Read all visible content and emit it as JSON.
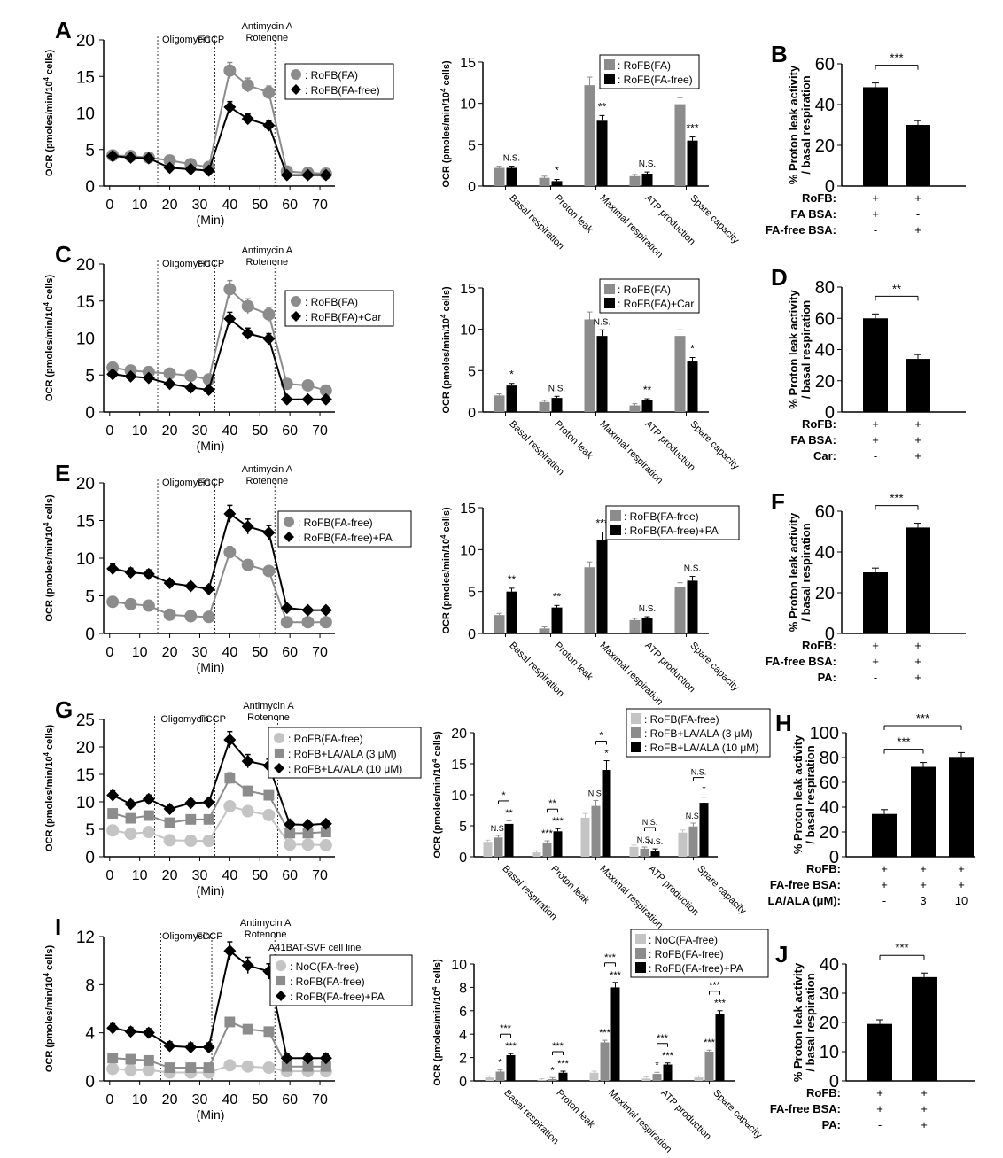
{
  "figure": {
    "panel_letters": [
      "A",
      "B",
      "C",
      "D",
      "E",
      "F",
      "G",
      "H",
      "I",
      "J"
    ],
    "time_xlabel": "(Min)",
    "ocr_ylabel": "OCR (pmoles/min/10",
    "ocr_ylabel_sup": "4",
    "ocr_ylabel_end": " cells)",
    "ratio_ylabel_1": "% Proton leak activity",
    "ratio_ylabel_2": "/ basal respiration",
    "injections": [
      "Oligomycin",
      "FCCP",
      "Antimycin A",
      "Rotenone"
    ],
    "sig": {
      "ns": "N.S.",
      "one": "*",
      "two": "**",
      "three": "***"
    },
    "yes": "+",
    "no": "-",
    "cell_line_label": "A41BAT-SVF cell line"
  },
  "colors": {
    "black": "#000000",
    "gray": "#8c8c8c",
    "lightgray": "#c4c4c4",
    "darkgray": "#555555"
  },
  "chart_data": [
    {
      "panel": "A",
      "type": "line",
      "xlabel": "(Min)",
      "ylabel": "OCR (pmoles/min/10^4 cells)",
      "ylim": [
        0,
        20
      ],
      "yticks": [
        0,
        5,
        10,
        15,
        20
      ],
      "xticks": [
        0,
        10,
        20,
        30,
        40,
        50,
        60,
        70
      ],
      "injection_times": [
        16,
        35,
        55
      ],
      "x": [
        1,
        7,
        13,
        20,
        27,
        33,
        40,
        46,
        53,
        59,
        66,
        72
      ],
      "series": [
        {
          "name": ": RoFB(FA)",
          "color": "gray",
          "marker": "circle",
          "values": [
            4.2,
            4.1,
            3.9,
            3.5,
            3.0,
            2.6,
            15.8,
            13.8,
            12.8,
            2.0,
            1.8,
            1.7
          ]
        },
        {
          "name": ": RoFB(FA-free)",
          "color": "black",
          "marker": "diamond",
          "values": [
            4.1,
            3.9,
            3.8,
            2.5,
            2.3,
            2.1,
            10.8,
            9.2,
            8.3,
            1.5,
            1.5,
            1.5
          ]
        }
      ]
    },
    {
      "panel": "A",
      "type": "bar",
      "ylabel": "OCR (pmoles/min/10^4 cells)",
      "ylim": [
        0,
        15
      ],
      "yticks": [
        0,
        5,
        10,
        15
      ],
      "categories": [
        "Basal respiration",
        "Proton leak",
        "Maximal respiration",
        "ATP production",
        "Spare capacity"
      ],
      "series": [
        {
          "name": ": RoFB(FA)",
          "color": "gray",
          "values": [
            2.2,
            1.0,
            12.2,
            1.2,
            9.9
          ]
        },
        {
          "name": ": RoFB(FA-free)",
          "color": "black",
          "values": [
            2.2,
            0.6,
            7.9,
            1.5,
            5.5
          ]
        }
      ],
      "significance": [
        "N.S.",
        "*",
        "**",
        "N.S.",
        "***"
      ]
    },
    {
      "panel": "B",
      "type": "bar",
      "ylabel": "% Proton leak activity / basal respiration",
      "ylim": [
        0,
        60
      ],
      "yticks": [
        0,
        20,
        40,
        60
      ],
      "values": [
        48.5,
        30.0
      ],
      "bracket": "***",
      "conditions": [
        {
          "label": "RoFB:",
          "marks": [
            "+",
            "+"
          ]
        },
        {
          "label": "FA BSA:",
          "marks": [
            "+",
            "-"
          ]
        },
        {
          "label": "FA-free BSA:",
          "marks": [
            "-",
            "+"
          ]
        }
      ]
    },
    {
      "panel": "C",
      "type": "line",
      "xlabel": "(Min)",
      "ylabel": "OCR (pmoles/min/10^4 cells)",
      "ylim": [
        0,
        20
      ],
      "yticks": [
        0,
        5,
        10,
        15,
        20
      ],
      "xticks": [
        0,
        10,
        20,
        30,
        40,
        50,
        60,
        70
      ],
      "injection_times": [
        16,
        35,
        55
      ],
      "x": [
        1,
        7,
        13,
        20,
        27,
        33,
        40,
        46,
        53,
        59,
        66,
        72
      ],
      "series": [
        {
          "name": ": RoFB(FA)",
          "color": "gray",
          "marker": "circle",
          "values": [
            6.0,
            5.6,
            5.4,
            5.2,
            4.9,
            4.4,
            16.6,
            14.3,
            13.2,
            3.8,
            3.6,
            2.9
          ]
        },
        {
          "name": ": RoFB(FA)+Car",
          "color": "black",
          "marker": "diamond",
          "values": [
            5.1,
            4.8,
            4.6,
            3.8,
            3.3,
            3.0,
            12.6,
            10.6,
            9.9,
            1.7,
            1.7,
            1.7
          ]
        }
      ]
    },
    {
      "panel": "C",
      "type": "bar",
      "ylabel": "OCR (pmoles/min/10^4 cells)",
      "ylim": [
        0,
        15
      ],
      "yticks": [
        0,
        5,
        10,
        15
      ],
      "categories": [
        "Basal respiration",
        "Proton leak",
        "Maximal respiration",
        "ATP production",
        "Spare capacity"
      ],
      "series": [
        {
          "name": ": RoFB(FA)",
          "color": "gray",
          "values": [
            2.0,
            1.2,
            11.2,
            0.8,
            9.2
          ]
        },
        {
          "name": ": RoFB(FA)+Car",
          "color": "black",
          "values": [
            3.2,
            1.7,
            9.2,
            1.4,
            6.1
          ]
        }
      ],
      "significance": [
        "*",
        "N.S.",
        "N.S.",
        "**",
        "*"
      ]
    },
    {
      "panel": "D",
      "type": "bar",
      "ylabel": "% Proton leak activity / basal respiration",
      "ylim": [
        0,
        80
      ],
      "yticks": [
        0,
        20,
        40,
        60,
        80
      ],
      "values": [
        60.0,
        34.0
      ],
      "bracket": "**",
      "conditions": [
        {
          "label": "RoFB:",
          "marks": [
            "+",
            "+"
          ]
        },
        {
          "label": "FA BSA:",
          "marks": [
            "+",
            "+"
          ]
        },
        {
          "label": "Car:",
          "marks": [
            "-",
            "+"
          ]
        }
      ]
    },
    {
      "panel": "E",
      "type": "line",
      "xlabel": "(Min)",
      "ylabel": "OCR (pmoles/min/10^4 cells)",
      "ylim": [
        0,
        20
      ],
      "yticks": [
        0,
        5,
        10,
        15,
        20
      ],
      "xticks": [
        0,
        10,
        20,
        30,
        40,
        50,
        60,
        70
      ],
      "injection_times": [
        16,
        35,
        55
      ],
      "x": [
        1,
        7,
        13,
        20,
        27,
        33,
        40,
        46,
        53,
        59,
        66,
        72
      ],
      "series": [
        {
          "name": ": RoFB(FA-free)",
          "color": "gray",
          "marker": "circle",
          "values": [
            4.2,
            3.9,
            3.7,
            2.5,
            2.3,
            2.2,
            10.8,
            9.1,
            8.3,
            1.5,
            1.5,
            1.5
          ]
        },
        {
          "name": ": RoFB(FA-free)+PA",
          "color": "black",
          "marker": "diamond",
          "values": [
            8.6,
            8.1,
            7.9,
            6.7,
            6.3,
            5.9,
            15.9,
            14.2,
            13.4,
            3.4,
            3.1,
            3.1
          ]
        }
      ]
    },
    {
      "panel": "E",
      "type": "bar",
      "ylabel": "OCR (pmoles/min/10^4 cells)",
      "ylim": [
        0,
        15
      ],
      "yticks": [
        0,
        5,
        10,
        15
      ],
      "categories": [
        "Basal respiration",
        "Proton leak",
        "Maximal respiration",
        "ATP production",
        "Spare capacity"
      ],
      "series": [
        {
          "name": ": RoFB(FA-free)",
          "color": "gray",
          "values": [
            2.2,
            0.6,
            7.9,
            1.6,
            5.6
          ]
        },
        {
          "name": ": RoFB(FA-free)+PA",
          "color": "black",
          "values": [
            5.0,
            3.1,
            11.2,
            1.8,
            6.3
          ]
        }
      ],
      "significance": [
        "**",
        "**",
        "***",
        "N.S.",
        "N.S."
      ]
    },
    {
      "panel": "F",
      "type": "bar",
      "ylabel": "% Proton leak activity / basal respiration",
      "ylim": [
        0,
        60
      ],
      "yticks": [
        0,
        20,
        40,
        60
      ],
      "values": [
        30.0,
        52.0
      ],
      "bracket": "***",
      "conditions": [
        {
          "label": "RoFB:",
          "marks": [
            "+",
            "+"
          ]
        },
        {
          "label": "FA-free BSA:",
          "marks": [
            "+",
            "+"
          ]
        },
        {
          "label": "PA:",
          "marks": [
            "-",
            "+"
          ]
        }
      ]
    },
    {
      "panel": "G",
      "type": "line",
      "xlabel": "(Min)",
      "ylabel": "OCR (pmoles/min/10^4 cells)",
      "ylim": [
        0,
        25
      ],
      "yticks": [
        0,
        5,
        10,
        15,
        20,
        25
      ],
      "xticks": [
        0,
        10,
        20,
        30,
        40,
        50,
        60,
        70
      ],
      "injection_times": [
        15,
        35,
        56
      ],
      "x": [
        1,
        7,
        13,
        20,
        27,
        33,
        40,
        46,
        53,
        60,
        66,
        72
      ],
      "series": [
        {
          "name": ": RoFB(FA-free)",
          "color": "lightgray",
          "marker": "circle",
          "values": [
            4.8,
            4.2,
            4.5,
            3.0,
            2.9,
            2.9,
            9.2,
            8.3,
            7.6,
            2.2,
            2.2,
            2.1
          ]
        },
        {
          "name": ": RoFB+LA/ALA (3 μM)",
          "color": "gray",
          "marker": "square",
          "values": [
            7.9,
            7.0,
            7.5,
            6.2,
            6.8,
            6.8,
            14.3,
            12.0,
            11.2,
            4.3,
            4.3,
            4.5
          ]
        },
        {
          "name": ": RoFB+LA/ALA (10 μM)",
          "color": "black",
          "marker": "diamond",
          "values": [
            11.2,
            9.6,
            10.5,
            8.7,
            9.8,
            9.9,
            21.3,
            17.4,
            16.6,
            5.9,
            5.8,
            6.0
          ]
        }
      ]
    },
    {
      "panel": "G",
      "type": "bar",
      "ylabel": "OCR (pmoles/min/10^4 cells)",
      "ylim": [
        0,
        20
      ],
      "yticks": [
        0,
        5,
        10,
        15,
        20
      ],
      "categories": [
        "Basal respiration",
        "Proton leak",
        "Maximal respiration",
        "ATP production",
        "Spare capacity"
      ],
      "series": [
        {
          "name": ": RoFB(FA-free)",
          "color": "lightgray",
          "values": [
            2.4,
            0.7,
            6.3,
            1.6,
            3.9
          ]
        },
        {
          "name": ": RoFB+LA/ALA (3 μM)",
          "color": "gray",
          "values": [
            3.1,
            2.3,
            8.2,
            1.3,
            4.9
          ]
        },
        {
          "name": ": RoFB+LA/ALA (10 μM)",
          "color": "black",
          "values": [
            5.3,
            4.1,
            14.0,
            1.0,
            8.7
          ]
        }
      ],
      "significance_mid": [
        "N.S.",
        "***",
        "N.S.",
        "N.S.",
        "N.S."
      ],
      "significance_high": [
        "**",
        "***",
        "*",
        "N.S.",
        "*"
      ],
      "bracket_sig": [
        "*",
        "**",
        "*",
        "N.S.",
        "N.S."
      ]
    },
    {
      "panel": "H",
      "type": "bar",
      "ylabel": "% Proton leak activity / basal respiration",
      "ylim": [
        0,
        100
      ],
      "yticks": [
        0,
        20,
        40,
        60,
        80,
        100
      ],
      "values": [
        34.5,
        72.5,
        80.5
      ],
      "brackets": [
        "***",
        "***"
      ],
      "conditions": [
        {
          "label": "RoFB:",
          "marks": [
            "+",
            "+",
            "+"
          ]
        },
        {
          "label": "FA-free BSA:",
          "marks": [
            "+",
            "+",
            "+"
          ]
        },
        {
          "label": "LA/ALA (μM):",
          "marks": [
            "-",
            "3",
            "10"
          ]
        }
      ]
    },
    {
      "panel": "I",
      "type": "line",
      "xlabel": "(Min)",
      "ylabel": "OCR (pmoles/min/10^4 cells)",
      "ylim": [
        0,
        12
      ],
      "yticks": [
        0,
        4,
        8,
        12
      ],
      "xticks": [
        0,
        10,
        20,
        30,
        40,
        50,
        60,
        70
      ],
      "injection_times": [
        17,
        34,
        55
      ],
      "x": [
        1,
        7,
        13,
        20,
        27,
        33,
        40,
        46,
        53,
        59,
        66,
        72
      ],
      "series": [
        {
          "name": ": NoC(FA-free)",
          "color": "lightgray",
          "marker": "circle",
          "values": [
            1.0,
            0.9,
            0.9,
            0.7,
            0.7,
            0.7,
            1.3,
            1.2,
            1.1,
            0.8,
            0.8,
            0.8
          ]
        },
        {
          "name": ": RoFB(FA-free)",
          "color": "gray",
          "marker": "square",
          "values": [
            1.9,
            1.8,
            1.7,
            1.1,
            1.1,
            1.1,
            4.9,
            4.3,
            4.1,
            1.2,
            1.2,
            1.2
          ]
        },
        {
          "name": ": RoFB(FA-free)+PA",
          "color": "black",
          "marker": "diamond",
          "values": [
            4.4,
            4.1,
            4.0,
            2.9,
            2.8,
            2.8,
            10.8,
            9.6,
            9.1,
            1.9,
            1.9,
            1.9
          ]
        }
      ]
    },
    {
      "panel": "I",
      "type": "bar",
      "ylabel": "OCR (pmoles/min/10^4 cells)",
      "ylim": [
        0,
        10
      ],
      "yticks": [
        0,
        2,
        4,
        6,
        8,
        10
      ],
      "categories": [
        "Basal respiration",
        "Proton leak",
        "Maximal respiration",
        "ATP production",
        "Spare capacity"
      ],
      "series": [
        {
          "name": ": NoC(FA-free)",
          "color": "lightgray",
          "values": [
            0.3,
            0.05,
            0.7,
            0.2,
            0.3
          ]
        },
        {
          "name": ": RoFB(FA-free)",
          "color": "gray",
          "values": [
            0.8,
            0.15,
            3.3,
            0.6,
            2.5
          ]
        },
        {
          "name": ": RoFB(FA-free)+PA",
          "color": "black",
          "values": [
            2.2,
            0.7,
            8.0,
            1.4,
            5.7
          ]
        }
      ],
      "significance_mid": [
        "*",
        "*",
        "***",
        "*",
        "***"
      ],
      "significance_high": [
        "***",
        "***",
        "***",
        "***",
        "***"
      ],
      "bracket_sig": [
        "***",
        "***",
        "***",
        "***",
        "***"
      ]
    },
    {
      "panel": "J",
      "type": "bar",
      "ylabel": "% Proton leak activity / basal respiration",
      "ylim": [
        0,
        40
      ],
      "yticks": [
        0,
        10,
        20,
        30,
        40
      ],
      "values": [
        19.5,
        35.5
      ],
      "bracket": "***",
      "conditions": [
        {
          "label": "RoFB:",
          "marks": [
            "+",
            "+"
          ]
        },
        {
          "label": "FA-free BSA:",
          "marks": [
            "+",
            "+"
          ]
        },
        {
          "label": "PA:",
          "marks": [
            "-",
            "+"
          ]
        }
      ]
    }
  ]
}
